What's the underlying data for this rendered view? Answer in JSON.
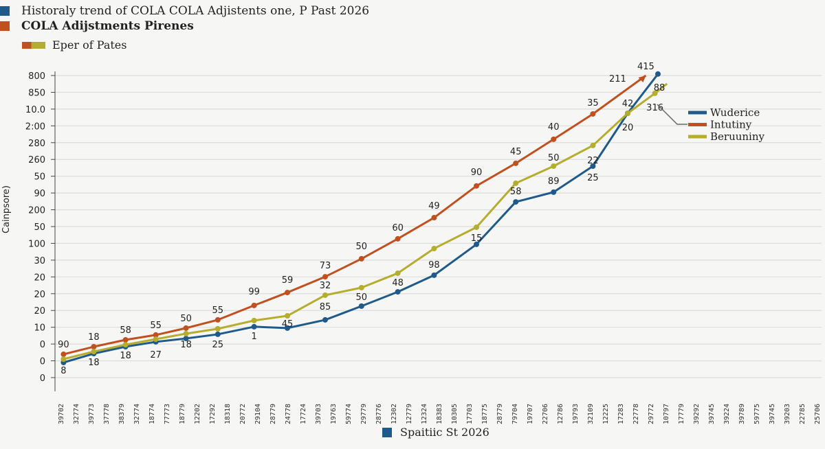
{
  "colors": {
    "blue": "#1f5a8a",
    "orange": "#c0501f",
    "yellow": "#b5ad2e",
    "grid": "#dcdcdc"
  },
  "header": {
    "title": "Historaly trend of COLA COLA Adjistents one, P Past 2026",
    "subtitle": "COLA Adijstments Pirenes",
    "legend_label": "Eper of Pates"
  },
  "footer": {
    "label": "Spaitiic St 2026"
  },
  "chart_data": {
    "type": "line",
    "title": "Historaly trend of COLA COLA Adjistents one, P Past 2026",
    "subtitle": "COLA Adijstments Pirenes",
    "ylabel": "Cainpsore)",
    "xlabel": "Spaitiic St 2026",
    "grid": true,
    "legend_placement": "right",
    "y_ticks": [
      "0",
      "0",
      "0",
      "10",
      "20",
      "20",
      "20",
      "30",
      "100",
      "50",
      "200",
      "90",
      "50",
      "260",
      "280",
      "2:00",
      "10.0",
      "850",
      "800"
    ],
    "ylim": [
      0,
      18
    ],
    "x_ticks": [
      "39702",
      "32774",
      "39773",
      "37778",
      "38379",
      "32774",
      "18774",
      "77773",
      "18779",
      "12202",
      "17292",
      "18318",
      "20772",
      "29104",
      "28779",
      "24778",
      "17724",
      "39703",
      "19763",
      "59774",
      "29779",
      "28776",
      "12302",
      "12779",
      "12324",
      "18383",
      "10305",
      "17703",
      "18775",
      "28779",
      "79704",
      "19707",
      "22706",
      "12786",
      "19793",
      "32109",
      "12225",
      "17283",
      "22778",
      "29772",
      "10797",
      "17779",
      "39292",
      "39745",
      "39224",
      "39789",
      "59775",
      "39745",
      "39203",
      "22785",
      "25706"
    ],
    "xlim": [
      0,
      50
    ],
    "series": [
      {
        "name": "Wuderice",
        "color": "#1f5a8a",
        "x": [
          0.2,
          2.2,
          4.3,
          6.3,
          8.3,
          10.4,
          12.8,
          15.0,
          17.5,
          19.9,
          22.3,
          24.7,
          27.5,
          30.1,
          32.6,
          35.2,
          37.5,
          39.5
        ],
        "y": [
          0.9,
          1.43,
          1.84,
          2.13,
          2.33,
          2.58,
          3.03,
          2.95,
          3.44,
          4.26,
          5.11,
          6.1,
          7.94,
          10.47,
          11.05,
          12.6,
          15.75,
          18.09
        ],
        "labels": [
          "8",
          "18",
          "18",
          "27",
          "18",
          "25",
          "1",
          "45",
          "85",
          "50",
          "48",
          "98",
          "15",
          "58",
          "89",
          "25",
          "20",
          "88"
        ]
      },
      {
        "name": "Intutiny",
        "color": "#c0501f",
        "x": [
          0.2,
          2.2,
          4.3,
          6.3,
          8.3,
          10.4,
          12.8,
          15.0,
          17.5,
          19.9,
          22.3,
          24.7,
          27.5,
          30.1,
          32.6,
          35.2,
          38.7
        ],
        "y": [
          1.39,
          1.84,
          2.25,
          2.54,
          2.95,
          3.44,
          4.3,
          5.07,
          6.01,
          7.08,
          8.27,
          9.53,
          11.42,
          12.77,
          14.2,
          15.71,
          18.0
        ],
        "labels": [
          "90",
          "18",
          "58",
          "55",
          "50",
          "55",
          "99",
          "59",
          "73",
          "50",
          "60",
          "49",
          "90",
          "45",
          "40",
          "35",
          "415"
        ]
      },
      {
        "name": "Beruuniny",
        "color": "#b5ad2e",
        "x": [
          0.2,
          2.2,
          4.3,
          6.3,
          8.3,
          10.4,
          12.8,
          15.0,
          17.5,
          19.9,
          22.3,
          24.7,
          27.5,
          30.1,
          32.6,
          35.2,
          37.5,
          39.3,
          40.1
        ],
        "y": [
          1.1,
          1.55,
          1.96,
          2.29,
          2.62,
          2.91,
          3.4,
          3.68,
          4.91,
          5.36,
          6.22,
          7.69,
          8.96,
          11.58,
          12.6,
          13.83,
          15.75,
          16.94,
          17.51
        ],
        "labels": [
          null,
          null,
          null,
          null,
          null,
          null,
          null,
          null,
          "32",
          null,
          null,
          null,
          null,
          null,
          "50",
          "22",
          "42",
          "316",
          null
        ]
      }
    ],
    "annotations": [
      {
        "text": "211",
        "x": 37.2,
        "y": 17.8
      }
    ]
  }
}
